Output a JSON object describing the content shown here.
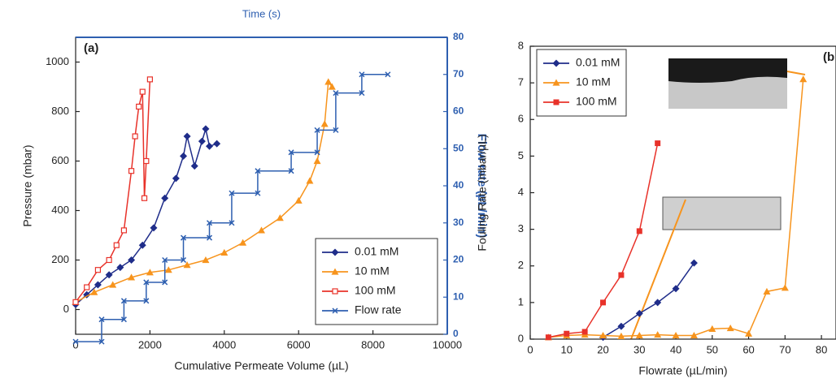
{
  "chart_data": [
    {
      "type": "line",
      "annotation": "(a)",
      "x2_label": "Time (s)",
      "xlabel": "Cumulative Permeate Volume (µL)",
      "ylabel": "Pressure (mbar)",
      "y2label": "Flow rate (µL/min)",
      "xlim": [
        0,
        10000
      ],
      "xticks": [
        0,
        2000,
        4000,
        6000,
        8000,
        10000
      ],
      "ylim": [
        -100,
        1100
      ],
      "yticks": [
        0,
        200,
        400,
        600,
        800,
        1000
      ],
      "y2lim": [
        0,
        80
      ],
      "y2ticks": [
        0,
        10,
        20,
        30,
        40,
        50,
        60,
        70,
        80
      ],
      "legend": "lower right",
      "series": [
        {
          "name": "0.01 mM",
          "color": "#1f2d8a",
          "marker": "diamond",
          "x": [
            0,
            300,
            600,
            900,
            1200,
            1500,
            1800,
            2100,
            2400,
            2700,
            2900,
            3000,
            3200,
            3400,
            3500,
            3600,
            3800
          ],
          "values": [
            20,
            60,
            100,
            140,
            170,
            200,
            260,
            330,
            450,
            530,
            620,
            700,
            580,
            680,
            730,
            660,
            670
          ]
        },
        {
          "name": "10 mM",
          "color": "#f7941d",
          "marker": "triangle",
          "x": [
            0,
            500,
            1000,
            1500,
            2000,
            2500,
            3000,
            3500,
            4000,
            4500,
            5000,
            5500,
            6000,
            6300,
            6500,
            6700,
            6800,
            6900
          ],
          "values": [
            30,
            70,
            100,
            130,
            150,
            160,
            180,
            200,
            230,
            270,
            320,
            370,
            440,
            520,
            600,
            750,
            920,
            900
          ]
        },
        {
          "name": "100 mM",
          "color": "#e8322a",
          "marker": "square-open",
          "x": [
            0,
            300,
            600,
            900,
            1100,
            1300,
            1500,
            1600,
            1700,
            1800,
            1850,
            1900,
            2000
          ],
          "values": [
            30,
            90,
            160,
            200,
            260,
            320,
            560,
            700,
            820,
            880,
            450,
            600,
            930
          ]
        },
        {
          "name": "Flow rate",
          "color": "#2e5fb0",
          "marker": "x",
          "axis": "y2",
          "x": [
            0,
            700,
            700,
            1300,
            1300,
            1900,
            1900,
            2400,
            2400,
            2900,
            2900,
            3600,
            3600,
            4200,
            4200,
            4900,
            4900,
            5800,
            5800,
            6500,
            6500,
            7000,
            7000,
            7700,
            7700,
            8400
          ],
          "values": [
            -2,
            -2,
            4,
            4,
            9,
            9,
            14,
            14,
            20,
            20,
            26,
            26,
            30,
            30,
            38,
            38,
            44,
            44,
            49,
            49,
            55,
            55,
            65,
            65,
            70,
            70
          ]
        }
      ]
    },
    {
      "type": "line",
      "annotation": "(b",
      "xlabel": "Flowrate (µL/min)",
      "ylabel": "Fouling Rate (mbar/µL)",
      "xlim": [
        0,
        84
      ],
      "xticks": [
        0,
        10,
        20,
        30,
        40,
        50,
        60,
        70,
        80
      ],
      "ylim": [
        0,
        8
      ],
      "yticks": [
        0,
        1,
        2,
        3,
        4,
        5,
        6,
        7,
        8
      ],
      "legend": "upper left",
      "series": [
        {
          "name": "0.01 mM",
          "color": "#1f2d8a",
          "marker": "diamond",
          "x": [
            20,
            25,
            30,
            35,
            40,
            45
          ],
          "values": [
            0.05,
            0.35,
            0.7,
            1.0,
            1.38,
            2.08
          ]
        },
        {
          "name": "10 mM",
          "color": "#f7941d",
          "marker": "triangle",
          "x": [
            5,
            10,
            15,
            20,
            25,
            30,
            35,
            40,
            45,
            50,
            55,
            60,
            65,
            70,
            75
          ],
          "values": [
            0.05,
            0.1,
            0.12,
            0.1,
            0.08,
            0.1,
            0.12,
            0.1,
            0.1,
            0.28,
            0.3,
            0.15,
            1.3,
            1.4,
            7.1
          ]
        },
        {
          "name": "100 mM",
          "color": "#e8322a",
          "marker": "square",
          "x": [
            5,
            10,
            15,
            20,
            25,
            30,
            35
          ],
          "values": [
            0.05,
            0.15,
            0.2,
            1.0,
            1.75,
            2.95,
            5.35
          ]
        }
      ]
    }
  ]
}
